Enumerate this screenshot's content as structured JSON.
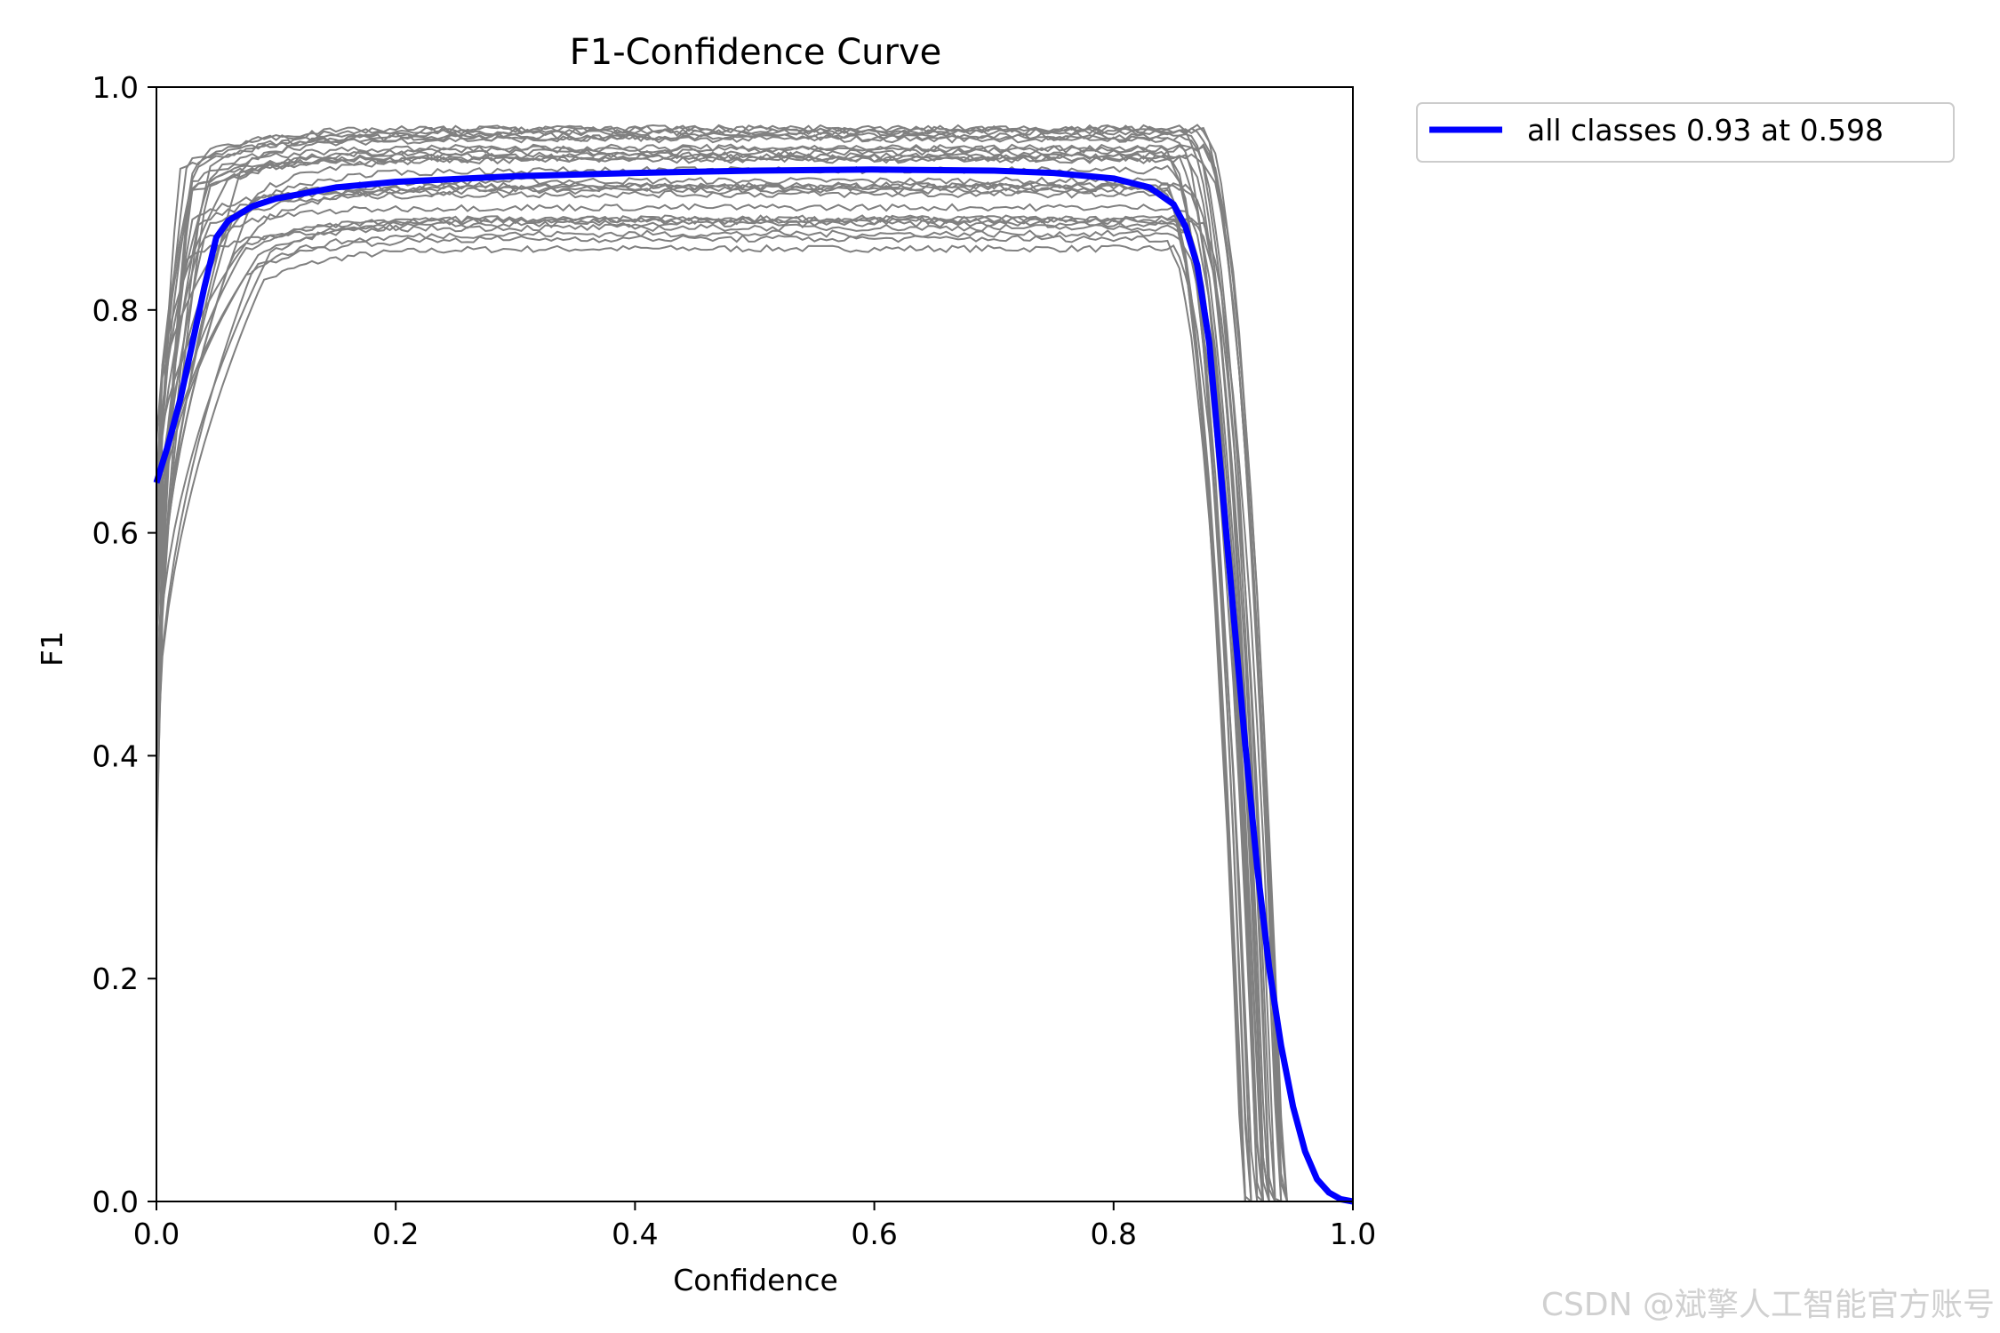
{
  "chart_data": {
    "type": "line",
    "title": "F1-Confidence Curve",
    "xlabel": "Confidence",
    "ylabel": "F1",
    "xlim": [
      0.0,
      1.0
    ],
    "ylim": [
      0.0,
      1.0
    ],
    "xticks": [
      "0.0",
      "0.2",
      "0.4",
      "0.6",
      "0.8",
      "1.0"
    ],
    "yticks": [
      "0.0",
      "0.2",
      "0.4",
      "0.6",
      "0.8",
      "1.0"
    ],
    "grid": false,
    "legend_position": "outside-top-right",
    "legend": [
      "all classes 0.93 at 0.598"
    ],
    "series": [
      {
        "name": "all classes 0.93 at 0.598",
        "color": "#0000ff",
        "x": [
          0.0,
          0.01,
          0.02,
          0.03,
          0.04,
          0.05,
          0.06,
          0.08,
          0.1,
          0.15,
          0.2,
          0.3,
          0.4,
          0.5,
          0.598,
          0.7,
          0.75,
          0.8,
          0.83,
          0.85,
          0.86,
          0.87,
          0.88,
          0.89,
          0.9,
          0.91,
          0.92,
          0.93,
          0.94,
          0.95,
          0.96,
          0.97,
          0.98,
          0.99,
          1.0
        ],
        "y": [
          0.645,
          0.68,
          0.72,
          0.77,
          0.82,
          0.865,
          0.88,
          0.893,
          0.9,
          0.91,
          0.915,
          0.92,
          0.923,
          0.925,
          0.926,
          0.925,
          0.923,
          0.918,
          0.91,
          0.895,
          0.875,
          0.84,
          0.77,
          0.65,
          0.53,
          0.41,
          0.3,
          0.21,
          0.14,
          0.085,
          0.045,
          0.02,
          0.008,
          0.002,
          0.0
        ]
      }
    ],
    "background_series_color": "#808080",
    "background_series_count": 30
  },
  "watermark": "CSDN @斌擎人工智能官方账号"
}
